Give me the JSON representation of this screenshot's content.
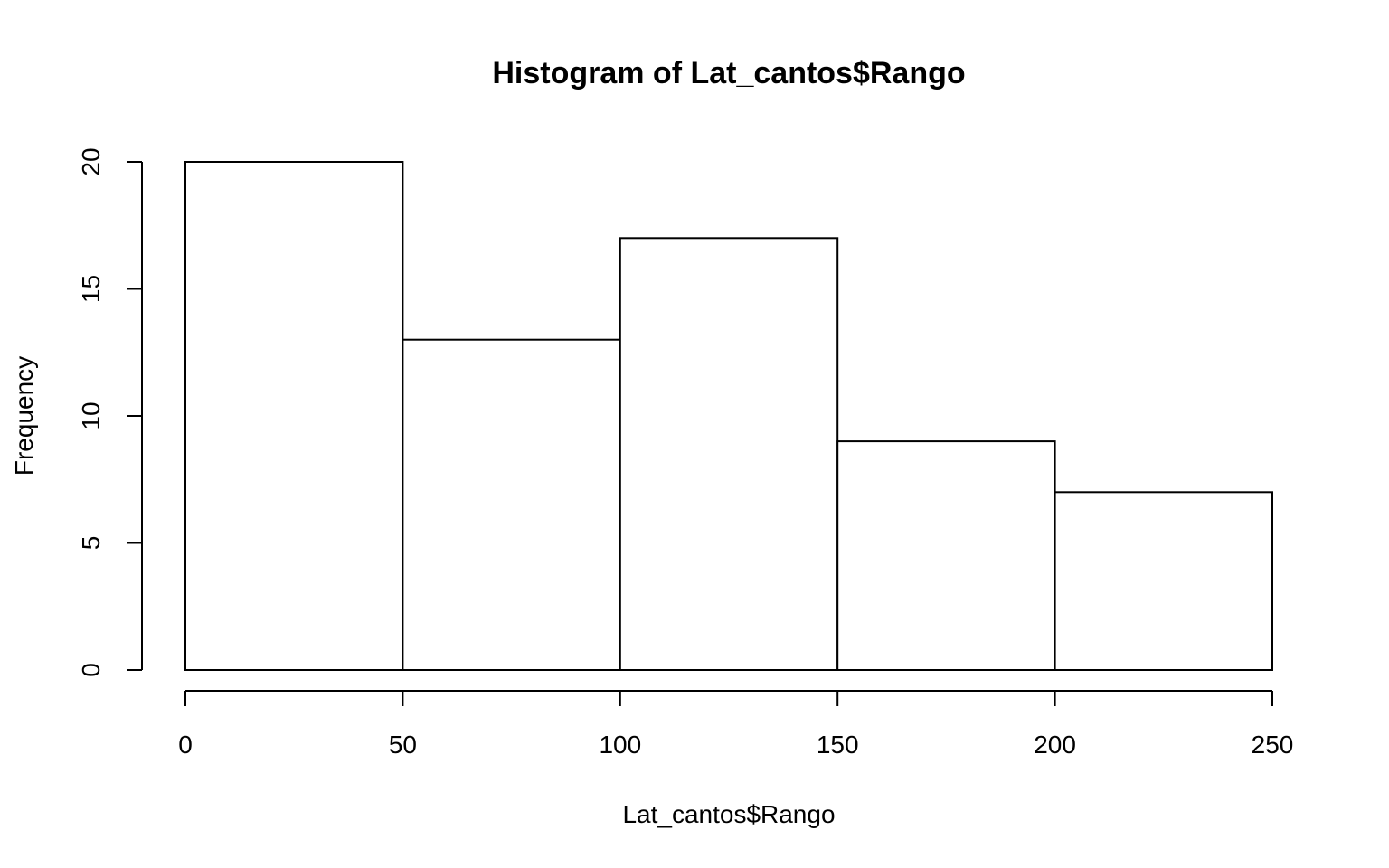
{
  "chart_data": {
    "type": "bar",
    "title": "Histogram of Lat_cantos$Rango",
    "xlabel": "Lat_cantos$Rango",
    "ylabel": "Frequency",
    "bins": [
      {
        "from": 0,
        "to": 50,
        "count": 20
      },
      {
        "from": 50,
        "to": 100,
        "count": 13
      },
      {
        "from": 100,
        "to": 150,
        "count": 17
      },
      {
        "from": 150,
        "to": 200,
        "count": 9
      },
      {
        "from": 200,
        "to": 250,
        "count": 7
      }
    ],
    "xticks": [
      0,
      50,
      100,
      150,
      200,
      250
    ],
    "yticks": [
      0,
      5,
      10,
      15,
      20
    ],
    "xlim": [
      0,
      250
    ],
    "ylim": [
      0,
      20
    ],
    "grid": false,
    "colors": {
      "bar_fill": "#ffffff",
      "bar_stroke": "#000000"
    }
  }
}
